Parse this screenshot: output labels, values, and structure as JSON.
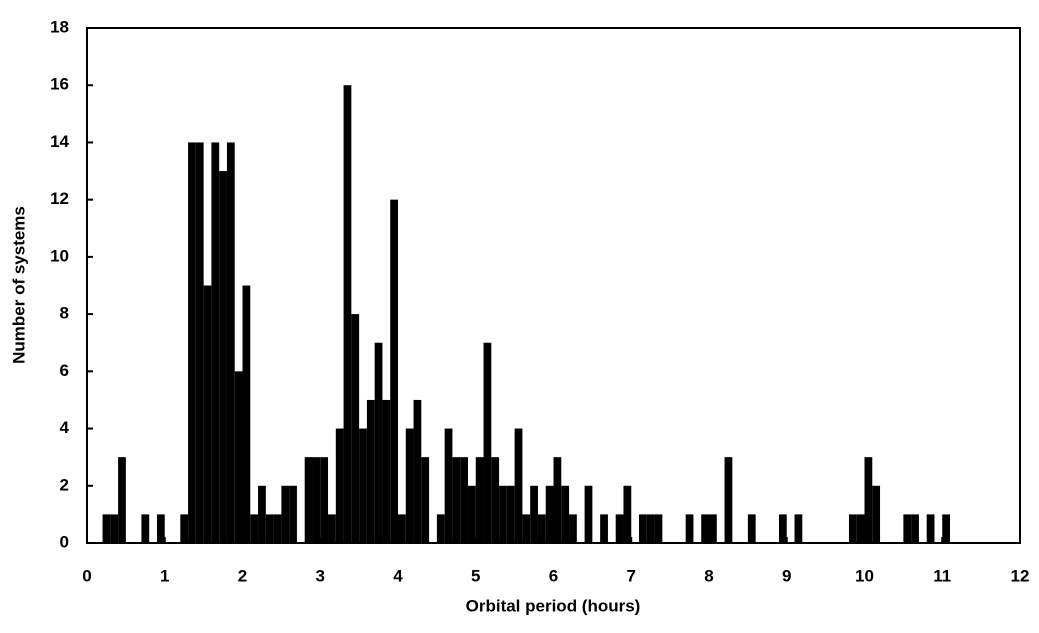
{
  "chart_data": {
    "type": "histogram",
    "x_label": "Orbital period (hours)",
    "y_label": "Number of systems",
    "color": "#000000",
    "bins": [
      0,
      0.1,
      0.2,
      0.3,
      0.4,
      0.5,
      0.6,
      0.7,
      0.8,
      0.9,
      1,
      1.1,
      1.2,
      1.3,
      1.4,
      1.5,
      1.6,
      1.7,
      1.8,
      1.9,
      2,
      2.1,
      2.2,
      2.3,
      2.4,
      2.5,
      2.6,
      2.7,
      2.8,
      2.9,
      3,
      3.1,
      3.2,
      3.3,
      3.4,
      3.5,
      3.6,
      3.7,
      3.8,
      3.9,
      4,
      4.1,
      4.2,
      4.3,
      4.4,
      4.5,
      4.6,
      4.7,
      4.8,
      4.9,
      5,
      5.1,
      5.2,
      5.3,
      5.4,
      5.5,
      5.6,
      5.7,
      5.8,
      5.9,
      6,
      6.1,
      6.2,
      6.3,
      6.4,
      6.5,
      6.6,
      6.7,
      6.8,
      6.9,
      7,
      7.1,
      7.2,
      7.3,
      7.4,
      7.5,
      7.6,
      7.7,
      7.8,
      7.9,
      8,
      8.1,
      8.2,
      8.3,
      8.4,
      8.5,
      8.6,
      8.7,
      8.8,
      8.9,
      9,
      9.1,
      9.2,
      9.3,
      9.4,
      9.5,
      9.6,
      9.7,
      9.8,
      9.9,
      10,
      10.1,
      10.2,
      10.3,
      10.4,
      10.5,
      10.6,
      10.7,
      10.8,
      10.9,
      11,
      11.1,
      11.2,
      11.3,
      11.4,
      11.5,
      11.6,
      11.7,
      11.8,
      11.9,
      12
    ],
    "counts": [
      0,
      0,
      1,
      1,
      3,
      0,
      0,
      1,
      0,
      1,
      0,
      0,
      1,
      14,
      14,
      9,
      14,
      13,
      14,
      6,
      9,
      1,
      2,
      1,
      1,
      2,
      2,
      0,
      3,
      3,
      3,
      1,
      4,
      16,
      8,
      4,
      5,
      7,
      5,
      12,
      1,
      4,
      5,
      3,
      0,
      1,
      4,
      3,
      3,
      2,
      3,
      7,
      3,
      2,
      2,
      4,
      1,
      2,
      1,
      2,
      3,
      2,
      1,
      0,
      2,
      0,
      1,
      0,
      1,
      2,
      0,
      1,
      1,
      1,
      0,
      0,
      0,
      1,
      0,
      1,
      1,
      0,
      3,
      0,
      0,
      1,
      0,
      0,
      0,
      1,
      0,
      1,
      0,
      0,
      0,
      0,
      0,
      0,
      1,
      1,
      3,
      2,
      0,
      0,
      0,
      1,
      1,
      0,
      1,
      0,
      1,
      0,
      0,
      0,
      0,
      0,
      0,
      0,
      0,
      0
    ],
    "xlim": [
      0,
      12
    ],
    "xticks": [
      0,
      1,
      2,
      3,
      4,
      5,
      6,
      7,
      8,
      9,
      10,
      11,
      12
    ],
    "ylim": [
      0,
      18
    ],
    "yticks": [
      0,
      2,
      4,
      6,
      8,
      10,
      12,
      14,
      16,
      18
    ],
    "grid": false
  }
}
